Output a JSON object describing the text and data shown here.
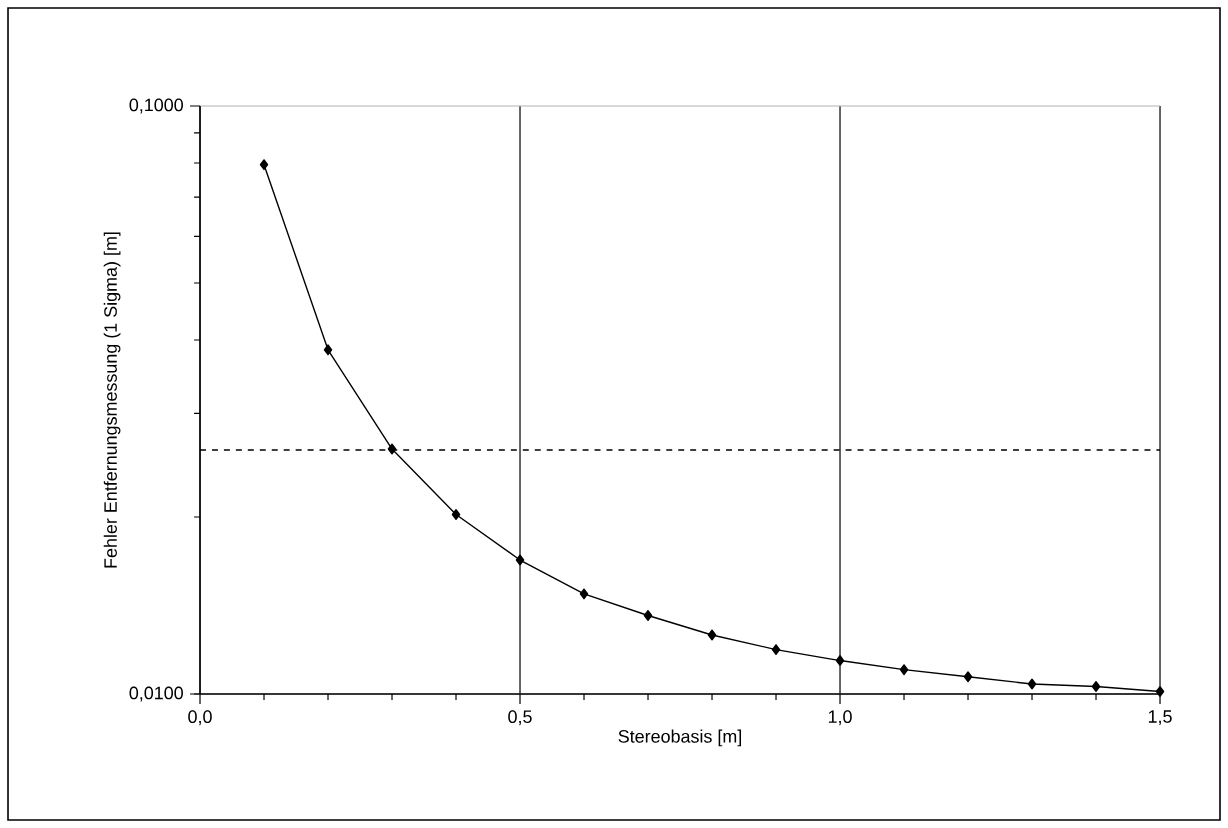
{
  "chart_data": {
    "type": "line",
    "xlabel": "Stereobasis [m]",
    "ylabel": "Fehler Entfernungsmessung (1 Sigma) [m]",
    "x": [
      0.1,
      0.2,
      0.3,
      0.4,
      0.5,
      0.6,
      0.7,
      0.8,
      0.9,
      1.0,
      1.1,
      1.2,
      1.3,
      1.4,
      1.5
    ],
    "series": [
      {
        "color": "#000000",
        "values": [
          0.0795,
          0.0385,
          0.0261,
          0.0202,
          0.0169,
          0.0148,
          0.0136,
          0.0126,
          0.0119,
          0.0114,
          0.011,
          0.0107,
          0.0104,
          0.0103,
          0.0101
        ]
      }
    ],
    "xlim": [
      0,
      1.5
    ],
    "ylim": [
      0.01,
      0.1
    ],
    "xticks": [
      {
        "value": 0,
        "label": "0,0"
      },
      {
        "value": 0.5,
        "label": "0,5"
      },
      {
        "value": 1.0,
        "label": "1,0"
      },
      {
        "value": 1.5,
        "label": "1,5"
      }
    ],
    "yticks": [
      {
        "value": 0.01,
        "label": "0,0100"
      },
      {
        "value": 0.1,
        "label": "0,1000"
      }
    ],
    "log": "y",
    "grid": true,
    "marker": "diamond",
    "line_style": "solid",
    "ref_lines": [
      {
        "axis": "y",
        "value": 0.026,
        "line_style": "dashed",
        "color": "#000000"
      }
    ]
  }
}
